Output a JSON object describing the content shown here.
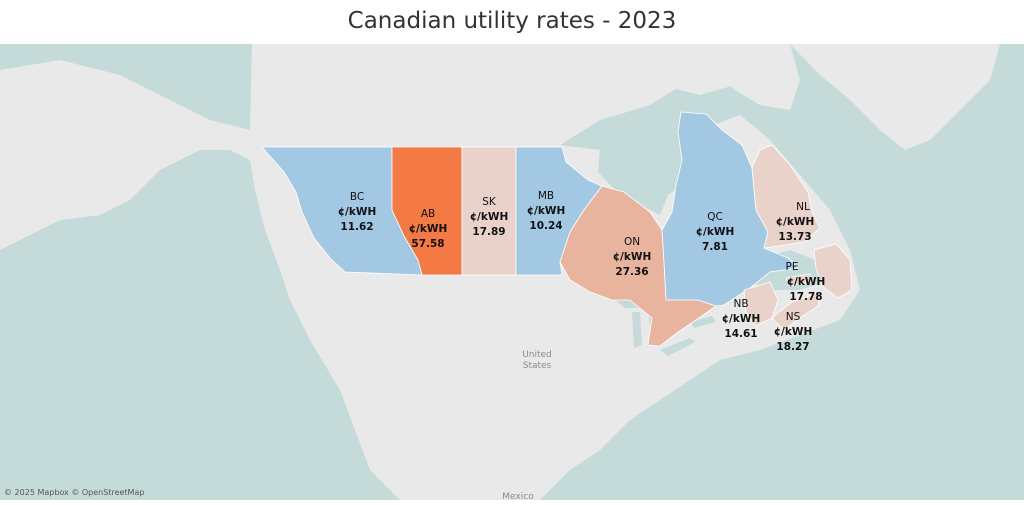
{
  "title": "Canadian utility rates - 2023",
  "attribution": "© 2025 Mapbox © OpenStreetMap",
  "basemap_labels": {
    "us_line1": "United",
    "us_line2": "States",
    "mexico": "Mexico"
  },
  "colors": {
    "water": "#c5dbd9",
    "land": "#e9e9e9",
    "low": "#a3c8e4",
    "light": "#e8d2ca",
    "mid": "#e8b49e",
    "high": "#f47a45"
  },
  "provinces": [
    {
      "code": "BC",
      "unit": "¢/kWH",
      "rate": "11.62"
    },
    {
      "code": "AB",
      "unit": "¢/kWH",
      "rate": "57.58"
    },
    {
      "code": "SK",
      "unit": "¢/kWH",
      "rate": "17.89"
    },
    {
      "code": "MB",
      "unit": "¢/kWH",
      "rate": "10.24"
    },
    {
      "code": "ON",
      "unit": "¢/kWH",
      "rate": "27.36"
    },
    {
      "code": "QC",
      "unit": "¢/kWH",
      "rate": "7.81"
    },
    {
      "code": "NL",
      "unit": "¢/kWH",
      "rate": "13.73"
    },
    {
      "code": "PE",
      "unit": "¢/kWH",
      "rate": "17.78"
    },
    {
      "code": "NB",
      "unit": "¢/kWH",
      "rate": "14.61"
    },
    {
      "code": "NS",
      "unit": "¢/kWH",
      "rate": "18.27"
    }
  ]
}
